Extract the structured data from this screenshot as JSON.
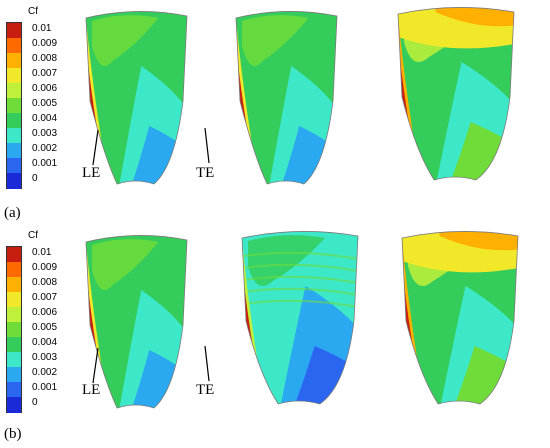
{
  "legend": {
    "title": "Cf",
    "ticks": [
      "0.01",
      "0.009",
      "0.008",
      "0.007",
      "0.006",
      "0.005",
      "0.004",
      "0.003",
      "0.002",
      "0.001",
      "0"
    ],
    "colors": [
      "#c81e10",
      "#ff6a00",
      "#ffb000",
      "#f2e82a",
      "#bff03a",
      "#6fdc3a",
      "#34cc5a",
      "#3ce8c8",
      "#2aa8f0",
      "#2a66f0",
      "#1a2ad8"
    ]
  },
  "annotations": {
    "le": "LE",
    "te": "TE"
  },
  "rows": [
    {
      "label": "(a)",
      "panels": [
        {
          "id": "a1",
          "scheme": "base"
        },
        {
          "id": "a2",
          "scheme": "base2"
        },
        {
          "id": "a3",
          "scheme": "warm"
        }
      ]
    },
    {
      "label": "(b)",
      "panels": [
        {
          "id": "b1",
          "scheme": "base"
        },
        {
          "id": "b2",
          "scheme": "cool"
        },
        {
          "id": "b3",
          "scheme": "warm2"
        }
      ]
    }
  ]
}
